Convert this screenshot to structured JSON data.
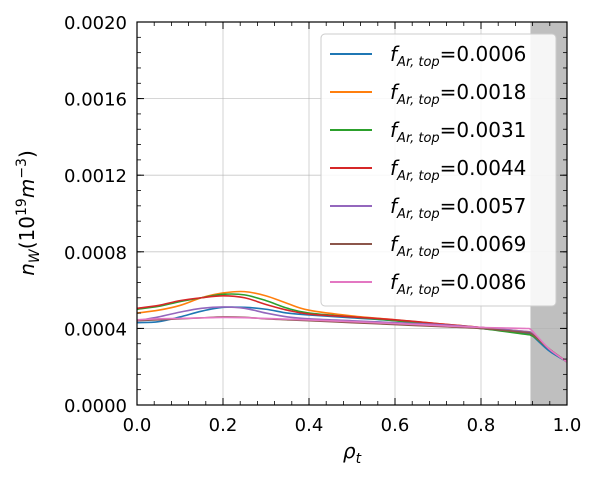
{
  "chart_data": {
    "type": "line",
    "title": "",
    "xlabel_main": "ρ",
    "xlabel_sub": "t",
    "ylabel_main": "n",
    "ylabel_sub": "W",
    "ylabel_rest": "(10",
    "ylabel_sup": "19",
    "ylabel_unit": "m",
    "ylabel_unit_sup": "−3",
    "ylabel_close": ")",
    "xlim": [
      0.0,
      1.0
    ],
    "ylim": [
      0.0,
      0.002
    ],
    "x_ticks": [
      "0.0",
      "0.2",
      "0.4",
      "0.6",
      "0.8",
      "1.0"
    ],
    "y_ticks": [
      "0.0000",
      "0.0004",
      "0.0008",
      "0.0012",
      "0.0016",
      "0.0020"
    ],
    "grid": true,
    "legend_position": "top-right",
    "shaded_region": {
      "x_start": 0.915,
      "x_end": 1.0,
      "color": "#bfbfbf"
    },
    "x": [
      0.0,
      0.05,
      0.1,
      0.15,
      0.2,
      0.25,
      0.3,
      0.35,
      0.4,
      0.5,
      0.6,
      0.7,
      0.8,
      0.9,
      0.915,
      0.93,
      0.96,
      1.0
    ],
    "series": [
      {
        "legend_main": "f",
        "legend_sub": "Ar, top",
        "legend_value": "=0.0006",
        "color": "#1f77b4",
        "values": [
          0.00043,
          0.000435,
          0.00046,
          0.00049,
          0.00051,
          0.00051,
          0.0005,
          0.00048,
          0.00047,
          0.000455,
          0.00044,
          0.00042,
          0.0004,
          0.000375,
          0.00037,
          0.00034,
          0.00028,
          0.000225
        ]
      },
      {
        "legend_main": "f",
        "legend_sub": "Ar, top",
        "legend_value": "=0.0018",
        "color": "#ff7f0e",
        "values": [
          0.00048,
          0.000495,
          0.00052,
          0.00056,
          0.000585,
          0.000592,
          0.00057,
          0.00053,
          0.000495,
          0.000465,
          0.000445,
          0.000425,
          0.000405,
          0.000385,
          0.00038,
          0.00035,
          0.00029,
          0.000225
        ]
      },
      {
        "legend_main": "f",
        "legend_sub": "Ar, top",
        "legend_value": "=0.0031",
        "color": "#2ca02c",
        "values": [
          0.0005,
          0.000515,
          0.00054,
          0.00056,
          0.000578,
          0.000575,
          0.000545,
          0.000505,
          0.00048,
          0.00046,
          0.00044,
          0.00042,
          0.0004,
          0.00037,
          0.000365,
          0.000345,
          0.00029,
          0.000225
        ]
      },
      {
        "legend_main": "f",
        "legend_sub": "Ar, top",
        "legend_value": "=0.0044",
        "color": "#d62728",
        "values": [
          0.000505,
          0.00052,
          0.000545,
          0.00056,
          0.00057,
          0.00056,
          0.000525,
          0.000495,
          0.000475,
          0.00046,
          0.000445,
          0.000425,
          0.000405,
          0.00038,
          0.000375,
          0.00035,
          0.00029,
          0.000225
        ]
      },
      {
        "legend_main": "f",
        "legend_sub": "Ar, top",
        "legend_value": "=0.0057",
        "color": "#9467bd",
        "values": [
          0.00044,
          0.00046,
          0.000485,
          0.000505,
          0.000512,
          0.000505,
          0.00048,
          0.00046,
          0.00045,
          0.00044,
          0.00043,
          0.00042,
          0.000405,
          0.000385,
          0.00038,
          0.00035,
          0.00029,
          0.000225
        ]
      },
      {
        "legend_main": "f",
        "legend_sub": "Ar, top",
        "legend_value": "=0.0069",
        "color": "#8c564b",
        "values": [
          0.00044,
          0.000445,
          0.00045,
          0.000455,
          0.00046,
          0.000458,
          0.00045,
          0.000445,
          0.00044,
          0.00043,
          0.00042,
          0.00041,
          0.0004,
          0.00038,
          0.000375,
          0.00035,
          0.00029,
          0.000225
        ]
      },
      {
        "legend_main": "f",
        "legend_sub": "Ar, top",
        "legend_value": "=0.0086",
        "color": "#e377c2",
        "values": [
          0.000445,
          0.00045,
          0.000452,
          0.000455,
          0.000457,
          0.000456,
          0.000452,
          0.000448,
          0.000444,
          0.000435,
          0.000425,
          0.000415,
          0.000405,
          0.0004,
          0.000395,
          0.00036,
          0.00029,
          0.000225
        ]
      }
    ]
  }
}
